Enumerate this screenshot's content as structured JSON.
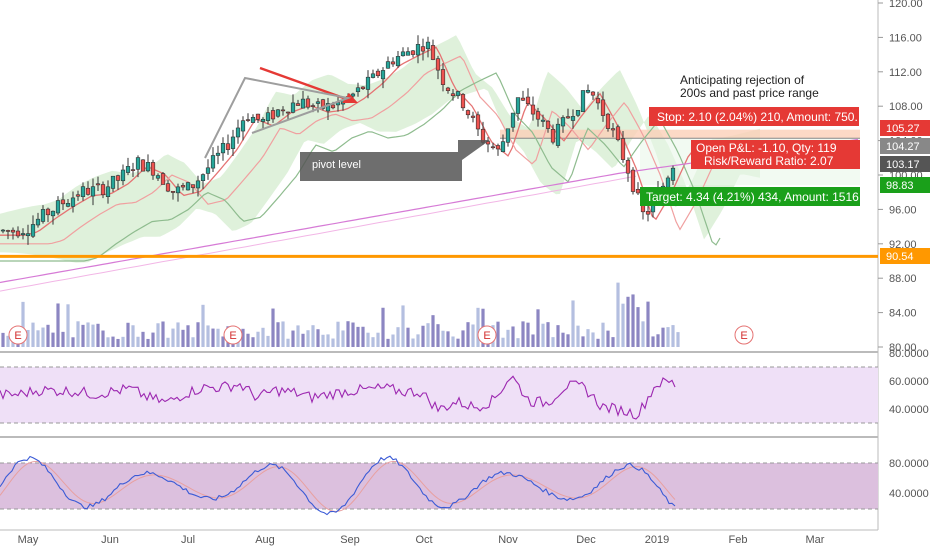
{
  "chart_data": {
    "type": "candlestick",
    "x_ticks": [
      "May",
      "Jun",
      "Jul",
      "Aug",
      "Sep",
      "Oct",
      "Nov",
      "Dec",
      "2019",
      "Feb",
      "Mar"
    ],
    "price_axis": {
      "ticks": [
        "120.00",
        "116.00",
        "112.00",
        "108.00",
        "104.00",
        "100.00",
        "96.00",
        "92.00",
        "88.00",
        "84.00",
        "80.00"
      ],
      "range": [
        80,
        120
      ]
    },
    "price_series": [
      [
        "2018-04-26",
        93.5
      ],
      [
        "2018-05-01",
        93.9
      ],
      [
        "2018-05-08",
        95.5
      ],
      [
        "2018-05-15",
        96.9
      ],
      [
        "2018-05-22",
        98.1
      ],
      [
        "2018-05-29",
        98.3
      ],
      [
        "2018-06-05",
        99.5
      ],
      [
        "2018-06-12",
        101.5
      ],
      [
        "2018-06-19",
        100.6
      ],
      [
        "2018-06-26",
        98.1
      ],
      [
        "2018-07-03",
        98.6
      ],
      [
        "2018-07-10",
        101.0
      ],
      [
        "2018-07-17",
        103.5
      ],
      [
        "2018-07-24",
        107.0
      ],
      [
        "2018-07-31",
        106.2
      ],
      [
        "2018-08-07",
        107.8
      ],
      [
        "2018-08-14",
        108.6
      ],
      [
        "2018-08-21",
        107.8
      ],
      [
        "2018-08-28",
        108.1
      ],
      [
        "2018-09-04",
        109.4
      ],
      [
        "2018-09-11",
        111.1
      ],
      [
        "2018-09-18",
        113.3
      ],
      [
        "2018-09-25",
        114.4
      ],
      [
        "2018-10-02",
        115.4
      ],
      [
        "2018-10-09",
        110.6
      ],
      [
        "2018-10-16",
        108.4
      ],
      [
        "2018-10-23",
        104.4
      ],
      [
        "2018-10-30",
        102.6
      ],
      [
        "2018-11-06",
        109.0
      ],
      [
        "2018-11-13",
        107.0
      ],
      [
        "2018-11-20",
        104.4
      ],
      [
        "2018-11-27",
        107.4
      ],
      [
        "2018-12-04",
        110.0
      ],
      [
        "2018-12-11",
        106.2
      ],
      [
        "2018-12-18",
        101.3
      ],
      [
        "2018-12-25",
        95.0
      ],
      [
        "2019-01-01",
        98.6
      ],
      [
        "2019-01-08",
        103.2
      ]
    ],
    "levels": [
      {
        "name": "stop",
        "value": 105.27,
        "label": "105.27",
        "color": "#e53935"
      },
      {
        "name": "entry",
        "value": 104.27,
        "label": "104.27",
        "color": "#888888"
      },
      {
        "name": "last",
        "value": 103.17,
        "label": "103.17",
        "color": "#555555"
      },
      {
        "name": "target",
        "value": 98.83,
        "label": "98.83",
        "color": "#1aa01a"
      },
      {
        "name": "support",
        "value": 90.54,
        "label": "90.54",
        "color": "#ff9800"
      }
    ],
    "short_position": {
      "stop_text": "Stop: 2.10 (2.04%) 210, Amount: 750.",
      "open_pl_text": "Open P&L: -1.10, Qty: 119",
      "risk_reward_text": "Risk/Reward Ratio: 2.07",
      "target_text": "Target: 4.34 (4.21%) 434, Amount: 1516"
    },
    "earnings_marker": "E",
    "rsi": {
      "ticks": [
        "80.0000",
        "60.0000",
        "40.0000"
      ],
      "overbought": 70,
      "oversold": 30
    },
    "stoch": {
      "ticks": [
        "80.0000",
        "40.0000"
      ],
      "upper": 80,
      "lower": 20
    },
    "colors": {
      "up": "#26a69a",
      "down": "#ef5350",
      "rsi": "#9c27b0",
      "stoch_k": "#3b5bd6",
      "stoch_d": "#e8a0a0",
      "cloud": "#b7e0b0"
    }
  },
  "annotations": {
    "note": "Anticipating rejection of\n200s and past price range",
    "callout": "pivot level"
  }
}
